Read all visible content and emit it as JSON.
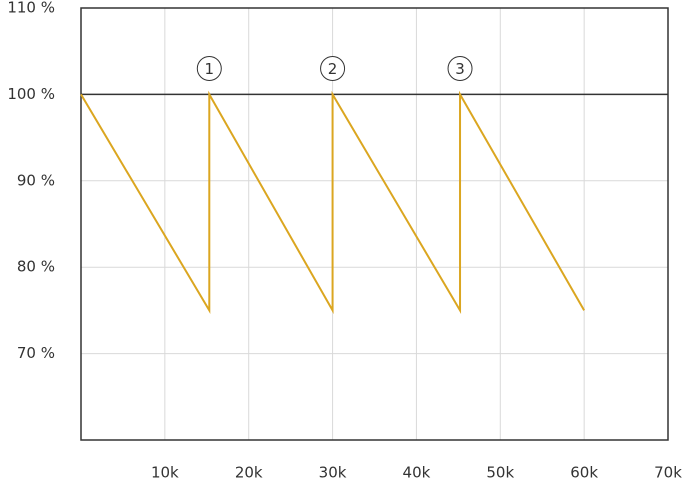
{
  "chart_data": {
    "type": "line",
    "x": [
      0,
      15300,
      15300,
      30000,
      30000,
      45200,
      45200,
      60000
    ],
    "series": [
      {
        "color": "#dba620",
        "values": [
          100,
          75,
          100,
          75,
          100,
          75,
          100,
          75
        ]
      }
    ],
    "xlim": [
      0,
      70000
    ],
    "xticks": [
      {
        "value": 10000,
        "label": "10k"
      },
      {
        "value": 20000,
        "label": "20k"
      },
      {
        "value": 30000,
        "label": "30k"
      },
      {
        "value": 40000,
        "label": "40k"
      },
      {
        "value": 50000,
        "label": "50k"
      },
      {
        "value": 60000,
        "label": "60k"
      },
      {
        "value": 70000,
        "label": "70k"
      }
    ],
    "ylim": [
      60,
      110
    ],
    "yticks": [
      {
        "value": 70,
        "label": "70 %"
      },
      {
        "value": 80,
        "label": "80 %"
      },
      {
        "value": 90,
        "label": "90 %"
      },
      {
        "value": 100,
        "label": "100 %"
      },
      {
        "value": 110,
        "label": "110 %"
      }
    ],
    "reference_line": 100,
    "grid": true,
    "annotations": [
      {
        "text": "1",
        "x": 15300,
        "y": 103
      },
      {
        "text": "2",
        "x": 30000,
        "y": 103
      },
      {
        "text": "3",
        "x": 45200,
        "y": 103
      }
    ]
  }
}
